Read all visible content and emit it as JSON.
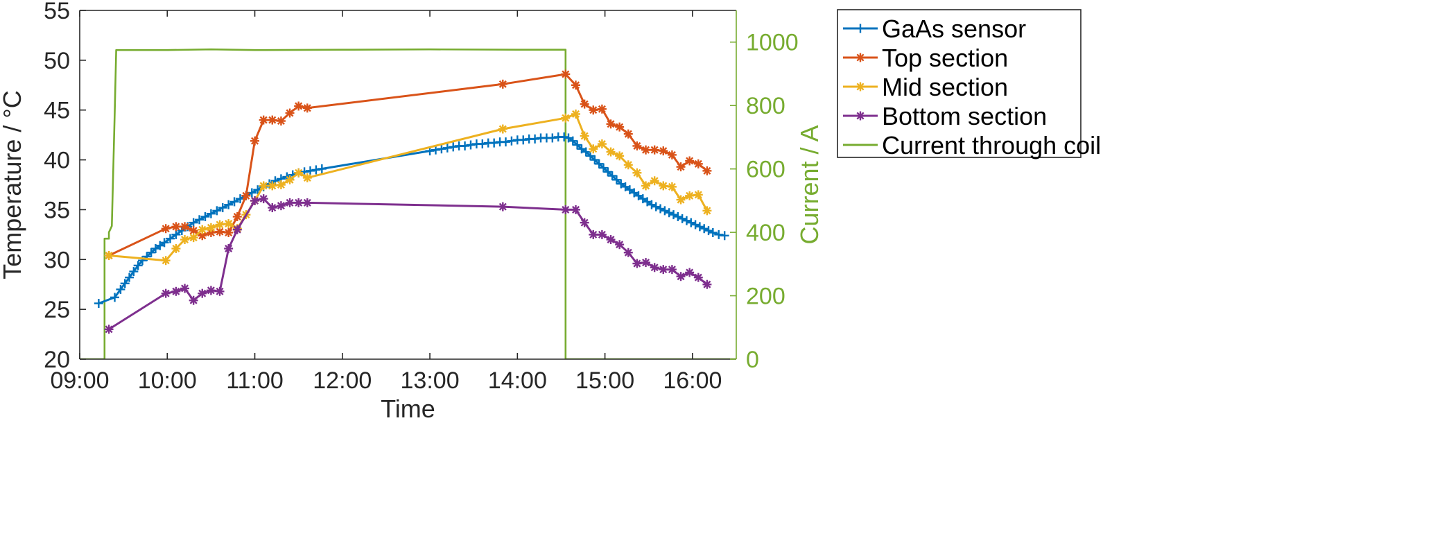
{
  "chart_data": {
    "type": "line",
    "xlabel": "Time",
    "ylabel": "Temperature / °C",
    "y2label": "Current / A",
    "xlim": [
      "09:00",
      "16:30"
    ],
    "ylim": [
      20,
      55
    ],
    "y2lim": [
      0,
      1100
    ],
    "x_ticks": [
      "09:00",
      "10:00",
      "11:00",
      "12:00",
      "13:00",
      "14:00",
      "15:00",
      "16:00"
    ],
    "y_ticks": [
      20,
      25,
      30,
      35,
      40,
      45,
      50,
      55
    ],
    "y2_ticks": [
      0,
      200,
      400,
      600,
      800,
      1000
    ],
    "grid": false,
    "legend_position": "outside-right",
    "colors": {
      "left_axis": "#262626",
      "right_axis": "#77AC30"
    },
    "series": [
      {
        "name": "GaAs sensor",
        "axis": "left",
        "color": "#0072BD",
        "marker": "plus",
        "points": [
          [
            "09:13",
            25.6
          ],
          [
            "09:24",
            26.2
          ],
          [
            "09:28",
            27.0
          ],
          [
            "09:31",
            27.6
          ],
          [
            "09:34",
            28.2
          ],
          [
            "09:37",
            28.8
          ],
          [
            "09:40",
            29.4
          ],
          [
            "09:43",
            29.9
          ],
          [
            "09:46",
            30.3
          ],
          [
            "09:49",
            30.7
          ],
          [
            "09:52",
            31.1
          ],
          [
            "09:55",
            31.4
          ],
          [
            "09:58",
            31.7
          ],
          [
            "10:02",
            32.1
          ],
          [
            "10:06",
            32.5
          ],
          [
            "10:10",
            32.9
          ],
          [
            "10:14",
            33.3
          ],
          [
            "10:18",
            33.7
          ],
          [
            "10:22",
            34.0
          ],
          [
            "10:26",
            34.3
          ],
          [
            "10:30",
            34.6
          ],
          [
            "10:34",
            34.9
          ],
          [
            "10:38",
            35.2
          ],
          [
            "10:42",
            35.5
          ],
          [
            "10:46",
            35.8
          ],
          [
            "10:50",
            36.1
          ],
          [
            "10:54",
            36.4
          ],
          [
            "10:58",
            36.7
          ],
          [
            "11:02",
            37.0
          ],
          [
            "11:06",
            37.3
          ],
          [
            "11:10",
            37.6
          ],
          [
            "11:14",
            37.9
          ],
          [
            "11:18",
            38.1
          ],
          [
            "11:22",
            38.3
          ],
          [
            "11:26",
            38.5
          ],
          [
            "11:30",
            38.7
          ],
          [
            "11:34",
            38.8
          ],
          [
            "11:38",
            38.9
          ],
          [
            "11:42",
            39.0
          ],
          [
            "11:46",
            39.1
          ],
          [
            "13:00",
            40.9
          ],
          [
            "13:04",
            41.0
          ],
          [
            "13:08",
            41.1
          ],
          [
            "13:12",
            41.2
          ],
          [
            "13:16",
            41.3
          ],
          [
            "13:20",
            41.4
          ],
          [
            "13:24",
            41.4
          ],
          [
            "13:28",
            41.5
          ],
          [
            "13:32",
            41.6
          ],
          [
            "13:36",
            41.6
          ],
          [
            "13:40",
            41.7
          ],
          [
            "13:44",
            41.7
          ],
          [
            "13:48",
            41.8
          ],
          [
            "13:52",
            41.8
          ],
          [
            "13:56",
            41.9
          ],
          [
            "14:00",
            42.0
          ],
          [
            "14:04",
            42.0
          ],
          [
            "14:08",
            42.1
          ],
          [
            "14:12",
            42.1
          ],
          [
            "14:16",
            42.2
          ],
          [
            "14:20",
            42.2
          ],
          [
            "14:24",
            42.2
          ],
          [
            "14:28",
            42.3
          ],
          [
            "14:32",
            42.3
          ],
          [
            "14:35",
            42.2
          ],
          [
            "14:38",
            41.9
          ],
          [
            "14:41",
            41.5
          ],
          [
            "14:44",
            41.1
          ],
          [
            "14:47",
            40.8
          ],
          [
            "14:50",
            40.4
          ],
          [
            "14:53",
            40.0
          ],
          [
            "14:56",
            39.6
          ],
          [
            "14:59",
            39.2
          ],
          [
            "15:02",
            38.8
          ],
          [
            "15:05",
            38.4
          ],
          [
            "15:08",
            38.0
          ],
          [
            "15:11",
            37.6
          ],
          [
            "15:14",
            37.3
          ],
          [
            "15:17",
            37.0
          ],
          [
            "15:20",
            36.7
          ],
          [
            "15:23",
            36.4
          ],
          [
            "15:26",
            36.1
          ],
          [
            "15:29",
            35.8
          ],
          [
            "15:32",
            35.5
          ],
          [
            "15:35",
            35.3
          ],
          [
            "15:38",
            35.1
          ],
          [
            "15:41",
            34.9
          ],
          [
            "15:44",
            34.7
          ],
          [
            "15:47",
            34.5
          ],
          [
            "15:50",
            34.3
          ],
          [
            "15:53",
            34.1
          ],
          [
            "15:56",
            33.9
          ],
          [
            "15:59",
            33.7
          ],
          [
            "16:02",
            33.5
          ],
          [
            "16:05",
            33.3
          ],
          [
            "16:08",
            33.1
          ],
          [
            "16:11",
            32.9
          ],
          [
            "16:14",
            32.7
          ],
          [
            "16:18",
            32.5
          ],
          [
            "16:22",
            32.4
          ]
        ]
      },
      {
        "name": "Top section",
        "axis": "left",
        "color": "#D95319",
        "marker": "asterisk",
        "points": [
          [
            "09:20",
            30.4
          ],
          [
            "09:59",
            33.1
          ],
          [
            "10:06",
            33.3
          ],
          [
            "10:12",
            33.3
          ],
          [
            "10:18",
            32.9
          ],
          [
            "10:24",
            32.4
          ],
          [
            "10:30",
            32.7
          ],
          [
            "10:36",
            32.8
          ],
          [
            "10:42",
            32.7
          ],
          [
            "10:48",
            34.3
          ],
          [
            "10:54",
            36.4
          ],
          [
            "11:00",
            41.9
          ],
          [
            "11:06",
            44.0
          ],
          [
            "11:12",
            44.0
          ],
          [
            "11:18",
            43.9
          ],
          [
            "11:24",
            44.7
          ],
          [
            "11:30",
            45.4
          ],
          [
            "11:36",
            45.2
          ],
          [
            "13:50",
            47.6
          ],
          [
            "14:33",
            48.6
          ],
          [
            "14:40",
            47.5
          ],
          [
            "14:46",
            45.6
          ],
          [
            "14:52",
            45.0
          ],
          [
            "14:58",
            45.1
          ],
          [
            "15:04",
            43.6
          ],
          [
            "15:10",
            43.3
          ],
          [
            "15:16",
            42.6
          ],
          [
            "15:22",
            41.4
          ],
          [
            "15:28",
            41.0
          ],
          [
            "15:34",
            41.0
          ],
          [
            "15:40",
            40.9
          ],
          [
            "15:46",
            40.5
          ],
          [
            "15:52",
            39.3
          ],
          [
            "15:58",
            39.9
          ],
          [
            "16:04",
            39.6
          ],
          [
            "16:10",
            38.9
          ]
        ]
      },
      {
        "name": "Mid section",
        "axis": "left",
        "color": "#EDB120",
        "marker": "asterisk",
        "points": [
          [
            "09:20",
            30.4
          ],
          [
            "09:59",
            29.9
          ],
          [
            "10:06",
            31.1
          ],
          [
            "10:12",
            32.0
          ],
          [
            "10:18",
            32.2
          ],
          [
            "10:24",
            33.0
          ],
          [
            "10:30",
            33.2
          ],
          [
            "10:36",
            33.5
          ],
          [
            "10:42",
            33.6
          ],
          [
            "10:48",
            33.1
          ],
          [
            "10:54",
            34.5
          ],
          [
            "11:00",
            35.9
          ],
          [
            "11:06",
            37.4
          ],
          [
            "11:12",
            37.4
          ],
          [
            "11:18",
            37.5
          ],
          [
            "11:24",
            38.0
          ],
          [
            "11:30",
            38.7
          ],
          [
            "11:36",
            38.2
          ],
          [
            "13:50",
            43.1
          ],
          [
            "14:33",
            44.2
          ],
          [
            "14:40",
            44.6
          ],
          [
            "14:46",
            42.4
          ],
          [
            "14:52",
            41.1
          ],
          [
            "14:58",
            41.6
          ],
          [
            "15:04",
            40.8
          ],
          [
            "15:10",
            40.4
          ],
          [
            "15:16",
            39.5
          ],
          [
            "15:22",
            38.7
          ],
          [
            "15:28",
            37.4
          ],
          [
            "15:34",
            37.9
          ],
          [
            "15:40",
            37.4
          ],
          [
            "15:46",
            37.3
          ],
          [
            "15:52",
            36.0
          ],
          [
            "15:58",
            36.4
          ],
          [
            "16:04",
            36.5
          ],
          [
            "16:10",
            34.9
          ]
        ]
      },
      {
        "name": "Bottom section",
        "axis": "left",
        "color": "#7E2F8E",
        "marker": "asterisk",
        "points": [
          [
            "09:20",
            23.0
          ],
          [
            "09:59",
            26.6
          ],
          [
            "10:06",
            26.8
          ],
          [
            "10:12",
            27.1
          ],
          [
            "10:18",
            25.9
          ],
          [
            "10:24",
            26.6
          ],
          [
            "10:30",
            26.9
          ],
          [
            "10:36",
            26.8
          ],
          [
            "10:42",
            31.1
          ],
          [
            "10:48",
            33.0
          ],
          [
            "11:00",
            35.9
          ],
          [
            "11:06",
            36.1
          ],
          [
            "11:12",
            35.2
          ],
          [
            "11:18",
            35.4
          ],
          [
            "11:24",
            35.7
          ],
          [
            "11:30",
            35.7
          ],
          [
            "11:36",
            35.7
          ],
          [
            "13:50",
            35.3
          ],
          [
            "14:33",
            35.0
          ],
          [
            "14:40",
            35.0
          ],
          [
            "14:46",
            33.7
          ],
          [
            "14:52",
            32.5
          ],
          [
            "14:58",
            32.5
          ],
          [
            "15:04",
            32.0
          ],
          [
            "15:10",
            31.5
          ],
          [
            "15:16",
            30.7
          ],
          [
            "15:22",
            29.6
          ],
          [
            "15:28",
            29.7
          ],
          [
            "15:34",
            29.2
          ],
          [
            "15:40",
            29.0
          ],
          [
            "15:46",
            29.0
          ],
          [
            "15:52",
            28.3
          ],
          [
            "15:58",
            28.7
          ],
          [
            "16:04",
            28.2
          ],
          [
            "16:10",
            27.5
          ]
        ]
      },
      {
        "name": "Current through coil",
        "axis": "right",
        "color": "#77AC30",
        "marker": "none",
        "points": [
          [
            "09:00",
            0
          ],
          [
            "09:17",
            0
          ],
          [
            "09:17",
            380
          ],
          [
            "09:20",
            380
          ],
          [
            "09:20",
            400
          ],
          [
            "09:22",
            420
          ],
          [
            "09:23",
            600
          ],
          [
            "09:24",
            780
          ],
          [
            "09:25",
            975
          ],
          [
            "10:00",
            975
          ],
          [
            "10:30",
            977
          ],
          [
            "11:00",
            975
          ],
          [
            "12:00",
            976
          ],
          [
            "13:00",
            977
          ],
          [
            "14:00",
            976
          ],
          [
            "14:33",
            976
          ],
          [
            "14:33",
            0
          ],
          [
            "16:30",
            0
          ]
        ]
      }
    ]
  }
}
